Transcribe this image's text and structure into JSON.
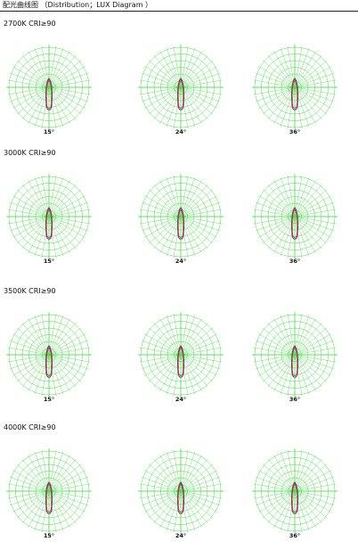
{
  "header": {
    "title": "配光曲线图 （Distribution；LUX Diagram ）"
  },
  "sections": [
    {
      "label": "2700K CRI≥90",
      "diagrams": [
        {
          "beam_angle": "15°"
        },
        {
          "beam_angle": "24°"
        },
        {
          "beam_angle": "36°"
        }
      ]
    },
    {
      "label": "3000K CRI≥90",
      "diagrams": [
        {
          "beam_angle": "15°"
        },
        {
          "beam_angle": "24°"
        },
        {
          "beam_angle": "36°"
        }
      ]
    },
    {
      "label": "3500K CRI≥90",
      "diagrams": [
        {
          "beam_angle": "15°"
        },
        {
          "beam_angle": "24°"
        },
        {
          "beam_angle": "36°"
        }
      ]
    },
    {
      "label": "4000K CRI≥90",
      "diagrams": [
        {
          "beam_angle": "15°"
        },
        {
          "beam_angle": "24°"
        },
        {
          "beam_angle": "36°"
        }
      ]
    }
  ],
  "colors": {
    "grid": "#44dd44",
    "curve_primary": "#7a2a8c",
    "curve_secondary": "#d03030",
    "divider": "#222222"
  }
}
